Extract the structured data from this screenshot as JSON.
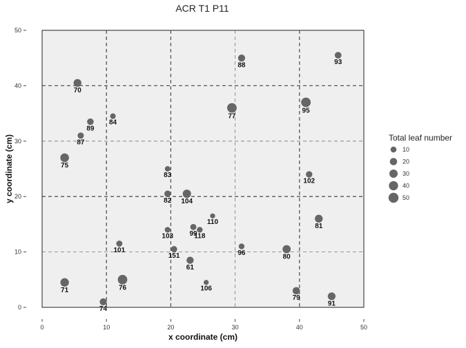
{
  "chart_data": {
    "type": "scatter",
    "title": "ACR T1 P11",
    "xlabel": "x coordinate (cm)",
    "ylabel": "y coordinate (cm)",
    "xlim": [
      0,
      50
    ],
    "ylim": [
      0,
      50
    ],
    "xticks": [
      0,
      10,
      20,
      30,
      40,
      50
    ],
    "yticks": [
      0,
      10,
      20,
      30,
      40,
      50
    ],
    "grid_major_lines": [
      10,
      20,
      30,
      40
    ],
    "background_color": "#efefef",
    "point_color": "#666666",
    "size_legend": {
      "title": "Total leaf number",
      "placement": "right",
      "values": [
        10,
        20,
        30,
        40,
        50
      ]
    },
    "points": [
      {
        "label": "70",
        "x": 5.5,
        "y": 40.5,
        "size": 25
      },
      {
        "label": "88",
        "x": 31,
        "y": 45,
        "size": 18
      },
      {
        "label": "93",
        "x": 46,
        "y": 45.5,
        "size": 15
      },
      {
        "label": "95",
        "x": 41,
        "y": 37,
        "size": 45
      },
      {
        "label": "77",
        "x": 29.5,
        "y": 36,
        "size": 45
      },
      {
        "label": "84",
        "x": 11,
        "y": 34.5,
        "size": 8
      },
      {
        "label": "89",
        "x": 7.5,
        "y": 33.5,
        "size": 14
      },
      {
        "label": "87",
        "x": 6,
        "y": 31,
        "size": 12
      },
      {
        "label": "75",
        "x": 3.5,
        "y": 27,
        "size": 34
      },
      {
        "label": "83",
        "x": 19.5,
        "y": 25,
        "size": 7
      },
      {
        "label": "102",
        "x": 41.5,
        "y": 24,
        "size": 13
      },
      {
        "label": "82",
        "x": 19.5,
        "y": 20.5,
        "size": 13
      },
      {
        "label": "104",
        "x": 22.5,
        "y": 20.5,
        "size": 30
      },
      {
        "label": "110",
        "x": 26.5,
        "y": 16.5,
        "size": 5
      },
      {
        "label": "81",
        "x": 43,
        "y": 16,
        "size": 25
      },
      {
        "label": "99",
        "x": 23.5,
        "y": 14.5,
        "size": 11
      },
      {
        "label": "118",
        "x": 24.5,
        "y": 14,
        "size": 9
      },
      {
        "label": "103",
        "x": 19.5,
        "y": 14,
        "size": 8
      },
      {
        "label": "101",
        "x": 12,
        "y": 11.5,
        "size": 11
      },
      {
        "label": "151",
        "x": 20.5,
        "y": 10.5,
        "size": 12
      },
      {
        "label": "96",
        "x": 31,
        "y": 11,
        "size": 9
      },
      {
        "label": "80",
        "x": 38,
        "y": 10.5,
        "size": 28
      },
      {
        "label": "61",
        "x": 23,
        "y": 8.5,
        "size": 19
      },
      {
        "label": "71",
        "x": 3.5,
        "y": 4.5,
        "size": 32
      },
      {
        "label": "76",
        "x": 12.5,
        "y": 5,
        "size": 44
      },
      {
        "label": "106",
        "x": 25.5,
        "y": 4.5,
        "size": 5
      },
      {
        "label": "79",
        "x": 39.5,
        "y": 3,
        "size": 20
      },
      {
        "label": "91",
        "x": 45,
        "y": 2,
        "size": 24
      },
      {
        "label": "74",
        "x": 9.5,
        "y": 1,
        "size": 18
      }
    ]
  }
}
